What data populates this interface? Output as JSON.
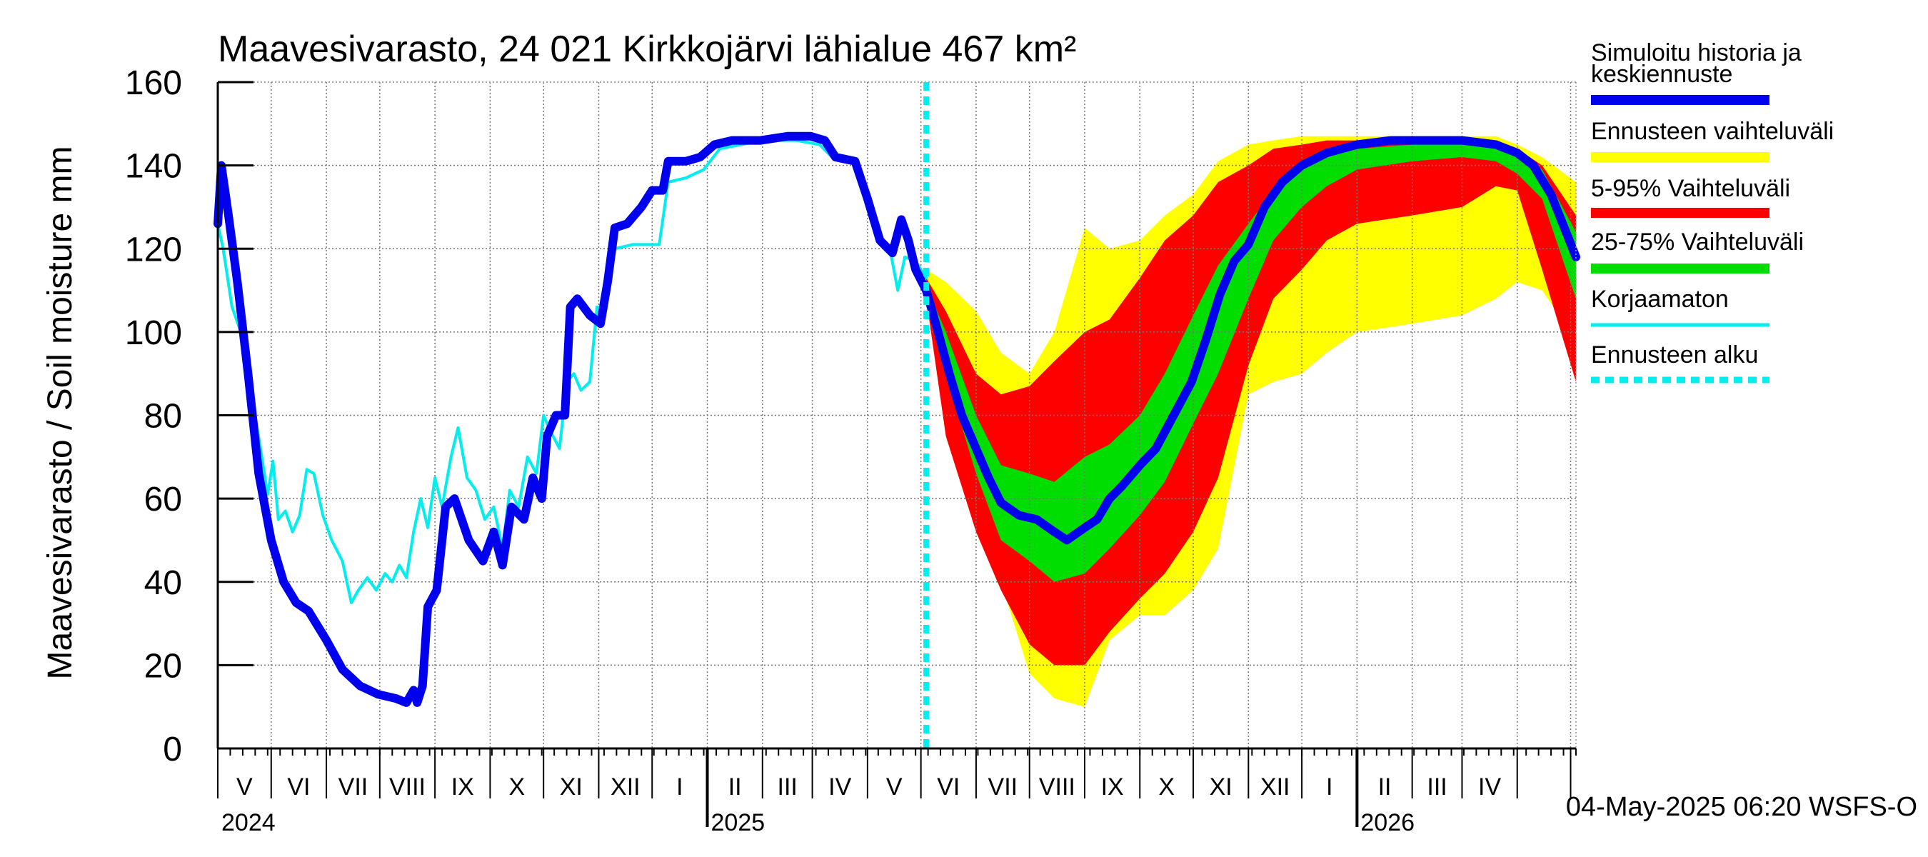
{
  "chart_data": {
    "type": "area",
    "title": "Maavesivarasto, 24 021 Kirkkojärvi lähialue 467 km²",
    "ylabel": "Maavesivarasto / Soil moisture   mm",
    "ylim": [
      0,
      160
    ],
    "yticks": [
      0,
      20,
      40,
      60,
      80,
      100,
      120,
      140,
      160
    ],
    "xlim": [
      "2024-04-01",
      "2026-05-04"
    ],
    "grid": true,
    "month_labels": [
      "V",
      "VI",
      "VII",
      "VIII",
      "IX",
      "X",
      "XI",
      "XII",
      "I",
      "II",
      "III",
      "IV",
      "V",
      "VI",
      "VII",
      "VIII",
      "IX",
      "X",
      "XI",
      "XII",
      "I",
      "II",
      "III",
      "IV"
    ],
    "year_labels": [
      {
        "label": "2024",
        "date": "2024-04-01"
      },
      {
        "label": "2025",
        "date": "2025-01-01"
      },
      {
        "label": "2026",
        "date": "2026-01-01"
      }
    ],
    "forecast_start": "2025-05-04",
    "timestamp": "04-May-2025 06:20 WSFS-O",
    "legend_position": "right",
    "legend": [
      {
        "key": "simulated",
        "label": "Simuloitu historia ja keskiennuste",
        "color": "#0000ee"
      },
      {
        "key": "range",
        "label": "Ennusteen vaihteluväli",
        "color": "#ffff00"
      },
      {
        "key": "p5_95",
        "label": "5-95% Vaihteluväli",
        "color": "#ff0000"
      },
      {
        "key": "p25_75",
        "label": "25-75% Vaihteluväli",
        "color": "#00dd00"
      },
      {
        "key": "uncorrected",
        "label": "Korjaamaton",
        "color": "#00eeee"
      },
      {
        "key": "forecast_start",
        "label": "Ennusteen alku",
        "color": "#00eeee"
      }
    ],
    "series": [
      {
        "key": "simulated",
        "name": "Simuloitu historia ja keskiennuste",
        "points": [
          [
            "2024-04-01",
            126
          ],
          [
            "2024-04-03",
            140
          ],
          [
            "2024-04-07",
            128
          ],
          [
            "2024-04-12",
            112
          ],
          [
            "2024-04-18",
            90
          ],
          [
            "2024-04-24",
            66
          ],
          [
            "2024-05-01",
            50
          ],
          [
            "2024-05-08",
            40
          ],
          [
            "2024-05-15",
            35
          ],
          [
            "2024-05-22",
            33
          ],
          [
            "2024-06-01",
            26
          ],
          [
            "2024-06-10",
            19
          ],
          [
            "2024-06-20",
            15
          ],
          [
            "2024-06-30",
            13
          ],
          [
            "2024-07-10",
            12
          ],
          [
            "2024-07-16",
            11
          ],
          [
            "2024-07-20",
            14
          ],
          [
            "2024-07-22",
            11
          ],
          [
            "2024-07-25",
            15
          ],
          [
            "2024-07-28",
            34
          ],
          [
            "2024-08-02",
            38
          ],
          [
            "2024-08-07",
            58
          ],
          [
            "2024-08-12",
            60
          ],
          [
            "2024-08-20",
            50
          ],
          [
            "2024-08-28",
            45
          ],
          [
            "2024-09-03",
            52
          ],
          [
            "2024-09-08",
            44
          ],
          [
            "2024-09-13",
            58
          ],
          [
            "2024-09-20",
            55
          ],
          [
            "2024-09-25",
            65
          ],
          [
            "2024-09-30",
            60
          ],
          [
            "2024-10-03",
            75
          ],
          [
            "2024-10-08",
            80
          ],
          [
            "2024-10-13",
            80
          ],
          [
            "2024-10-16",
            106
          ],
          [
            "2024-10-20",
            108
          ],
          [
            "2024-10-27",
            104
          ],
          [
            "2024-11-02",
            102
          ],
          [
            "2024-11-06",
            112
          ],
          [
            "2024-11-10",
            125
          ],
          [
            "2024-11-17",
            126
          ],
          [
            "2024-11-25",
            130
          ],
          [
            "2024-12-01",
            134
          ],
          [
            "2024-12-07",
            134
          ],
          [
            "2024-12-10",
            141
          ],
          [
            "2024-12-20",
            141
          ],
          [
            "2024-12-28",
            142
          ],
          [
            "2025-01-05",
            145
          ],
          [
            "2025-01-15",
            146
          ],
          [
            "2025-01-31",
            146
          ],
          [
            "2025-02-15",
            147
          ],
          [
            "2025-02-28",
            147
          ],
          [
            "2025-03-08",
            146
          ],
          [
            "2025-03-14",
            142
          ],
          [
            "2025-03-25",
            141
          ],
          [
            "2025-04-01",
            132
          ],
          [
            "2025-04-08",
            122
          ],
          [
            "2025-04-15",
            119
          ],
          [
            "2025-04-20",
            127
          ],
          [
            "2025-04-24",
            122
          ],
          [
            "2025-04-28",
            115
          ],
          [
            "2025-05-04",
            110
          ],
          [
            "2025-05-10",
            101
          ],
          [
            "2025-05-17",
            90
          ],
          [
            "2025-05-24",
            80
          ],
          [
            "2025-06-01",
            72
          ],
          [
            "2025-06-08",
            65
          ],
          [
            "2025-06-15",
            59
          ],
          [
            "2025-06-25",
            56
          ],
          [
            "2025-07-05",
            55
          ],
          [
            "2025-07-15",
            52
          ],
          [
            "2025-07-22",
            50
          ],
          [
            "2025-08-01",
            53
          ],
          [
            "2025-08-08",
            55
          ],
          [
            "2025-08-15",
            60
          ],
          [
            "2025-08-22",
            63
          ],
          [
            "2025-09-01",
            68
          ],
          [
            "2025-09-10",
            72
          ],
          [
            "2025-09-20",
            80
          ],
          [
            "2025-09-30",
            88
          ],
          [
            "2025-10-08",
            98
          ],
          [
            "2025-10-16",
            109
          ],
          [
            "2025-10-24",
            117
          ],
          [
            "2025-11-01",
            121
          ],
          [
            "2025-11-10",
            130
          ],
          [
            "2025-11-20",
            136
          ],
          [
            "2025-12-01",
            140
          ],
          [
            "2025-12-15",
            143
          ],
          [
            "2026-01-01",
            145
          ],
          [
            "2026-01-20",
            146
          ],
          [
            "2026-02-10",
            146
          ],
          [
            "2026-03-01",
            146
          ],
          [
            "2026-03-20",
            145
          ],
          [
            "2026-04-01",
            143
          ],
          [
            "2026-04-10",
            140
          ],
          [
            "2026-04-20",
            133
          ],
          [
            "2026-05-04",
            118
          ]
        ]
      },
      {
        "key": "uncorrected",
        "name": "Korjaamaton",
        "points": [
          [
            "2024-04-01",
            126
          ],
          [
            "2024-04-04",
            120
          ],
          [
            "2024-04-09",
            106
          ],
          [
            "2024-04-14",
            100
          ],
          [
            "2024-04-20",
            85
          ],
          [
            "2024-04-25",
            72
          ],
          [
            "2024-04-29",
            61
          ],
          [
            "2024-05-02",
            69
          ],
          [
            "2024-05-05",
            55
          ],
          [
            "2024-05-09",
            57
          ],
          [
            "2024-05-13",
            52
          ],
          [
            "2024-05-17",
            56
          ],
          [
            "2024-05-21",
            67
          ],
          [
            "2024-05-25",
            66
          ],
          [
            "2024-05-30",
            56
          ],
          [
            "2024-06-04",
            50
          ],
          [
            "2024-06-10",
            45
          ],
          [
            "2024-06-15",
            35
          ],
          [
            "2024-06-19",
            38
          ],
          [
            "2024-06-24",
            41
          ],
          [
            "2024-06-29",
            38
          ],
          [
            "2024-07-04",
            42
          ],
          [
            "2024-07-08",
            40
          ],
          [
            "2024-07-12",
            44
          ],
          [
            "2024-07-16",
            41
          ],
          [
            "2024-07-20",
            52
          ],
          [
            "2024-07-24",
            60
          ],
          [
            "2024-07-28",
            53
          ],
          [
            "2024-08-01",
            65
          ],
          [
            "2024-08-05",
            58
          ],
          [
            "2024-08-10",
            70
          ],
          [
            "2024-08-14",
            77
          ],
          [
            "2024-08-19",
            65
          ],
          [
            "2024-08-24",
            62
          ],
          [
            "2024-08-29",
            55
          ],
          [
            "2024-09-03",
            58
          ],
          [
            "2024-09-08",
            48
          ],
          [
            "2024-09-12",
            62
          ],
          [
            "2024-09-17",
            58
          ],
          [
            "2024-09-22",
            70
          ],
          [
            "2024-09-27",
            66
          ],
          [
            "2024-10-01",
            80
          ],
          [
            "2024-10-05",
            76
          ],
          [
            "2024-10-10",
            72
          ],
          [
            "2024-10-14",
            88
          ],
          [
            "2024-10-18",
            90
          ],
          [
            "2024-10-22",
            86
          ],
          [
            "2024-10-27",
            88
          ],
          [
            "2024-10-31",
            106
          ],
          [
            "2024-11-04",
            106
          ],
          [
            "2024-11-10",
            120
          ],
          [
            "2024-11-20",
            121
          ],
          [
            "2024-12-05",
            121
          ],
          [
            "2024-12-10",
            136
          ],
          [
            "2024-12-20",
            137
          ],
          [
            "2024-12-30",
            139
          ],
          [
            "2025-01-08",
            144
          ],
          [
            "2025-01-20",
            145
          ],
          [
            "2025-02-01",
            146
          ],
          [
            "2025-02-20",
            146
          ],
          [
            "2025-03-05",
            145
          ],
          [
            "2025-03-12",
            142
          ],
          [
            "2025-03-25",
            141
          ],
          [
            "2025-04-01",
            133
          ],
          [
            "2025-04-08",
            121
          ],
          [
            "2025-04-14",
            119
          ],
          [
            "2025-04-18",
            110
          ],
          [
            "2025-04-22",
            118
          ],
          [
            "2025-04-28",
            117
          ],
          [
            "2025-05-04",
            113
          ]
        ]
      }
    ],
    "bands": [
      {
        "key": "range",
        "name": "Ennusteen vaihteluväli",
        "points": [
          [
            "2025-05-04",
            115,
            108
          ],
          [
            "2025-05-15",
            112,
            84
          ],
          [
            "2025-06-01",
            105,
            62
          ],
          [
            "2025-06-15",
            95,
            40
          ],
          [
            "2025-07-01",
            90,
            18
          ],
          [
            "2025-07-15",
            100,
            12
          ],
          [
            "2025-08-01",
            125,
            10
          ],
          [
            "2025-08-15",
            120,
            26
          ],
          [
            "2025-09-01",
            122,
            32
          ],
          [
            "2025-09-15",
            128,
            32
          ],
          [
            "2025-10-01",
            133,
            38
          ],
          [
            "2025-10-15",
            141,
            48
          ],
          [
            "2025-11-01",
            145,
            85
          ],
          [
            "2025-11-15",
            146,
            88
          ],
          [
            "2025-12-01",
            147,
            90
          ],
          [
            "2025-12-15",
            147,
            95
          ],
          [
            "2026-01-01",
            147,
            100
          ],
          [
            "2026-02-01",
            147,
            102
          ],
          [
            "2026-03-01",
            147,
            104
          ],
          [
            "2026-03-20",
            147,
            108
          ],
          [
            "2026-04-01",
            145,
            112
          ],
          [
            "2026-04-15",
            142,
            110
          ],
          [
            "2026-05-04",
            136,
            98
          ]
        ]
      },
      {
        "key": "p5_95",
        "name": "5-95% Vaihteluväli",
        "points": [
          [
            "2025-05-04",
            113,
            108
          ],
          [
            "2025-05-15",
            105,
            75
          ],
          [
            "2025-06-01",
            90,
            52
          ],
          [
            "2025-06-15",
            85,
            38
          ],
          [
            "2025-07-01",
            87,
            25
          ],
          [
            "2025-07-15",
            93,
            20
          ],
          [
            "2025-08-01",
            100,
            20
          ],
          [
            "2025-08-15",
            103,
            28
          ],
          [
            "2025-09-01",
            113,
            36
          ],
          [
            "2025-09-15",
            122,
            42
          ],
          [
            "2025-10-01",
            128,
            52
          ],
          [
            "2025-10-15",
            136,
            65
          ],
          [
            "2025-11-01",
            140,
            92
          ],
          [
            "2025-11-15",
            144,
            108
          ],
          [
            "2025-12-01",
            145,
            115
          ],
          [
            "2025-12-15",
            146,
            122
          ],
          [
            "2026-01-01",
            146,
            126
          ],
          [
            "2026-02-01",
            146,
            128
          ],
          [
            "2026-03-01",
            146,
            130
          ],
          [
            "2026-03-20",
            146,
            135
          ],
          [
            "2026-04-01",
            144,
            134
          ],
          [
            "2026-04-15",
            140,
            115
          ],
          [
            "2026-05-04",
            128,
            88
          ]
        ]
      },
      {
        "key": "p25_75",
        "name": "25-75% Vaihteluväli",
        "points": [
          [
            "2025-05-04",
            111,
            108
          ],
          [
            "2025-05-15",
            100,
            90
          ],
          [
            "2025-06-01",
            80,
            66
          ],
          [
            "2025-06-15",
            68,
            50
          ],
          [
            "2025-07-01",
            66,
            45
          ],
          [
            "2025-07-15",
            64,
            40
          ],
          [
            "2025-08-01",
            70,
            42
          ],
          [
            "2025-08-15",
            73,
            48
          ],
          [
            "2025-09-01",
            80,
            56
          ],
          [
            "2025-09-15",
            90,
            64
          ],
          [
            "2025-10-01",
            104,
            78
          ],
          [
            "2025-10-15",
            116,
            90
          ],
          [
            "2025-11-01",
            126,
            108
          ],
          [
            "2025-11-15",
            134,
            122
          ],
          [
            "2025-12-01",
            139,
            130
          ],
          [
            "2025-12-15",
            142,
            135
          ],
          [
            "2026-01-01",
            144,
            139
          ],
          [
            "2026-02-01",
            145,
            141
          ],
          [
            "2026-03-01",
            145,
            142
          ],
          [
            "2026-03-20",
            145,
            141
          ],
          [
            "2026-04-01",
            143,
            138
          ],
          [
            "2026-04-15",
            139,
            132
          ],
          [
            "2026-05-04",
            124,
            108
          ]
        ]
      }
    ]
  }
}
